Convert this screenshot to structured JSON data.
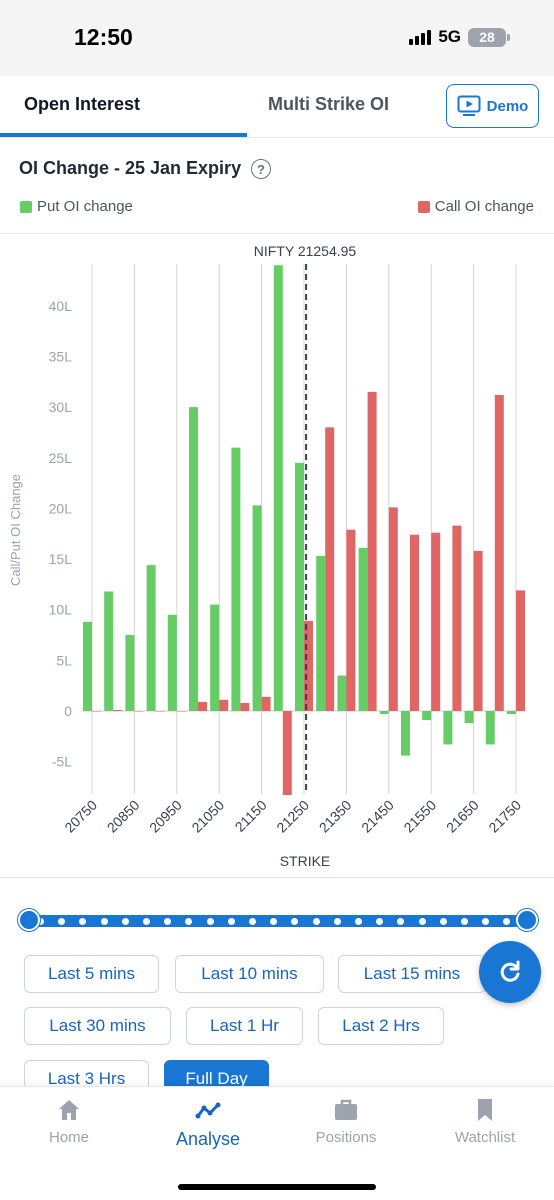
{
  "status_bar": {
    "time": "12:50",
    "network": "5G",
    "battery": "28"
  },
  "tabs": [
    {
      "label": "Open Interest",
      "active": true
    },
    {
      "label": "Multi Strike OI",
      "active": false
    }
  ],
  "demo_button": {
    "label": "Demo"
  },
  "section": {
    "title": "OI Change - 25 Jan Expiry"
  },
  "legend": {
    "put_label": "Put OI change",
    "call_label": "Call OI change"
  },
  "colors": {
    "put": "#66cc66",
    "call": "#e06666",
    "accent": "#1976d2"
  },
  "chart_data": {
    "type": "bar",
    "annotation": "NIFTY 21254.95",
    "spot": 21254.95,
    "xlabel": "STRIKE",
    "ylabel": "Call/Put OI Change",
    "ylim": [
      -8.3,
      44
    ],
    "yticks": [
      -5,
      0,
      5,
      10,
      15,
      20,
      25,
      30,
      35,
      40
    ],
    "ytick_labels": [
      "-5L",
      "0",
      "5L",
      "10L",
      "15L",
      "20L",
      "25L",
      "30L",
      "35L",
      "40L"
    ],
    "grid": true,
    "legend_position": "top",
    "categories": [
      20750,
      20800,
      20850,
      20900,
      20950,
      21000,
      21050,
      21100,
      21150,
      21200,
      21250,
      21300,
      21350,
      21400,
      21450,
      21500,
      21550,
      21600,
      21650,
      21700,
      21750
    ],
    "xtick_labels": [
      "20750",
      "20850",
      "20950",
      "21050",
      "21150",
      "21250",
      "21350",
      "21450",
      "21550",
      "21650",
      "21750"
    ],
    "series": [
      {
        "name": "Put OI change",
        "values": [
          8.8,
          11.8,
          7.5,
          14.4,
          9.5,
          30.0,
          10.5,
          26.0,
          20.3,
          44.0,
          24.5,
          15.3,
          3.5,
          16.1,
          -0.3,
          -4.4,
          -0.9,
          -3.3,
          -1.2,
          -3.3,
          -0.3
        ]
      },
      {
        "name": "Call OI change",
        "values": [
          0,
          0.1,
          0,
          0,
          0,
          0.9,
          1.1,
          0.8,
          1.4,
          -8.3,
          8.9,
          28.0,
          17.9,
          31.5,
          20.1,
          17.4,
          17.6,
          18.3,
          15.8,
          31.2,
          11.9
        ]
      }
    ]
  },
  "time_filters": [
    {
      "label": "Last 5 mins",
      "active": false
    },
    {
      "label": "Last 10 mins",
      "active": false
    },
    {
      "label": "Last 15 mins",
      "active": false
    },
    {
      "label": "Last 30 mins",
      "active": false
    },
    {
      "label": "Last 1 Hr",
      "active": false
    },
    {
      "label": "Last 2 Hrs",
      "active": false
    },
    {
      "label": "Last 3 Hrs",
      "active": false
    },
    {
      "label": "Full Day",
      "active": true
    }
  ],
  "bottom_nav": [
    {
      "label": "Home",
      "icon": "home-icon",
      "active": false
    },
    {
      "label": "Analyse",
      "icon": "analyse-icon",
      "active": true
    },
    {
      "label": "Positions",
      "icon": "briefcase-icon",
      "active": false
    },
    {
      "label": "Watchlist",
      "icon": "bookmark-icon",
      "active": false
    }
  ]
}
